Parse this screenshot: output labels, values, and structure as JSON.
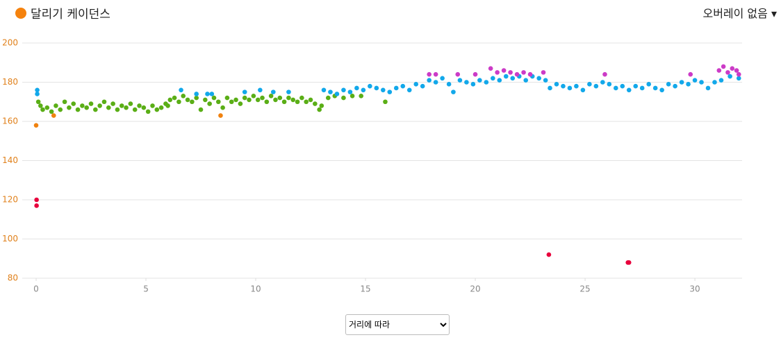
{
  "header": {
    "title": "달리기 케이던스",
    "overlay": "오버레이 없음 ▾"
  },
  "footer": {
    "mode_options": [
      "거리에 따라"
    ]
  },
  "chart_data": {
    "type": "scatter",
    "xlim": [
      0,
      32.15
    ],
    "ylim": [
      80,
      200
    ],
    "xticks": [
      0,
      5,
      10,
      15,
      20,
      25,
      30
    ],
    "yticks": [
      80,
      100,
      120,
      140,
      160,
      180,
      200
    ],
    "grid": true,
    "series": [
      {
        "color": "#e8003c",
        "x": [
          0.02,
          0.02,
          23.35,
          26.95,
          27.0
        ],
        "values": [
          120,
          117,
          92,
          88,
          88
        ]
      },
      {
        "color": "#f0820f",
        "x": [
          0.0,
          0.8,
          8.4
        ],
        "values": [
          158,
          163,
          163
        ]
      },
      {
        "color": "#5aae16",
        "x": [
          0.1,
          0.2,
          0.3,
          0.5,
          0.7,
          0.9,
          1.1,
          1.3,
          1.5,
          1.7,
          1.9,
          2.1,
          2.3,
          2.5,
          2.7,
          2.9,
          3.1,
          3.3,
          3.5,
          3.7,
          3.9,
          4.1,
          4.3,
          4.5,
          4.7,
          4.9,
          5.1,
          5.3,
          5.5,
          5.7,
          5.9,
          6.0,
          6.1,
          6.3,
          6.5,
          6.7,
          6.9,
          7.1,
          7.3,
          7.5,
          7.7,
          7.9,
          8.1,
          8.3,
          8.5,
          8.7,
          8.9,
          9.1,
          9.3,
          9.5,
          9.7,
          9.9,
          10.1,
          10.3,
          10.5,
          10.7,
          10.9,
          11.1,
          11.3,
          11.5,
          11.7,
          11.9,
          12.1,
          12.3,
          12.5,
          12.7,
          12.9,
          13.0,
          13.3,
          13.6,
          14.0,
          14.4,
          14.8,
          15.9
        ],
        "values": [
          170,
          168,
          166,
          167,
          165,
          168,
          166,
          170,
          167,
          169,
          166,
          168,
          167,
          169,
          166,
          168,
          170,
          167,
          169,
          166,
          168,
          167,
          169,
          166,
          168,
          167,
          165,
          168,
          166,
          167,
          169,
          168,
          171,
          172,
          170,
          173,
          171,
          170,
          172,
          166,
          171,
          169,
          172,
          170,
          167,
          172,
          170,
          171,
          169,
          172,
          171,
          173,
          171,
          172,
          170,
          173,
          171,
          172,
          170,
          172,
          171,
          170,
          172,
          170,
          171,
          169,
          166,
          168,
          172,
          173,
          172,
          173,
          173,
          170
        ]
      },
      {
        "color": "#12a8ea",
        "x": [
          0.05,
          0.05,
          6.6,
          7.3,
          7.8,
          8.0,
          9.5,
          10.2,
          10.8,
          11.5,
          13.1,
          13.4,
          13.7,
          14.0,
          14.3,
          14.6,
          14.9,
          15.2,
          15.5,
          15.8,
          16.1,
          16.4,
          16.7,
          17.0,
          17.3,
          17.6,
          17.9,
          18.2,
          18.5,
          18.8,
          19.0,
          19.3,
          19.6,
          19.9,
          20.2,
          20.5,
          20.8,
          21.1,
          21.4,
          21.7,
          22.0,
          22.3,
          22.6,
          22.9,
          23.2,
          23.4,
          23.7,
          24.0,
          24.3,
          24.6,
          24.9,
          25.2,
          25.5,
          25.8,
          26.1,
          26.4,
          26.7,
          27.0,
          27.3,
          27.6,
          27.9,
          28.2,
          28.5,
          28.8,
          29.1,
          29.4,
          29.7,
          30.0,
          30.3,
          30.6,
          30.9,
          31.2,
          31.6,
          32.0
        ],
        "values": [
          176,
          174,
          176,
          174,
          174,
          174,
          175,
          176,
          175,
          175,
          176,
          175,
          174,
          176,
          175,
          177,
          176,
          178,
          177,
          176,
          175,
          177,
          178,
          176,
          179,
          178,
          181,
          180,
          182,
          179,
          175,
          181,
          180,
          179,
          181,
          180,
          182,
          181,
          183,
          182,
          183,
          181,
          183,
          182,
          181,
          177,
          179,
          178,
          177,
          178,
          176,
          179,
          178,
          180,
          179,
          177,
          178,
          176,
          178,
          177,
          179,
          177,
          176,
          179,
          178,
          180,
          179,
          181,
          180,
          177,
          180,
          181,
          183,
          182
        ]
      },
      {
        "color": "#cc3bc7",
        "x": [
          17.9,
          18.2,
          19.2,
          20.0,
          20.7,
          21.0,
          21.3,
          21.6,
          21.9,
          22.2,
          22.5,
          23.1,
          25.9,
          29.8,
          31.1,
          31.3,
          31.5,
          31.7,
          31.9,
          32.0
        ],
        "values": [
          184,
          184,
          184,
          184,
          187,
          185,
          186,
          185,
          184,
          185,
          184,
          185,
          184,
          184,
          186,
          188,
          185,
          187,
          186,
          184
        ]
      }
    ]
  }
}
